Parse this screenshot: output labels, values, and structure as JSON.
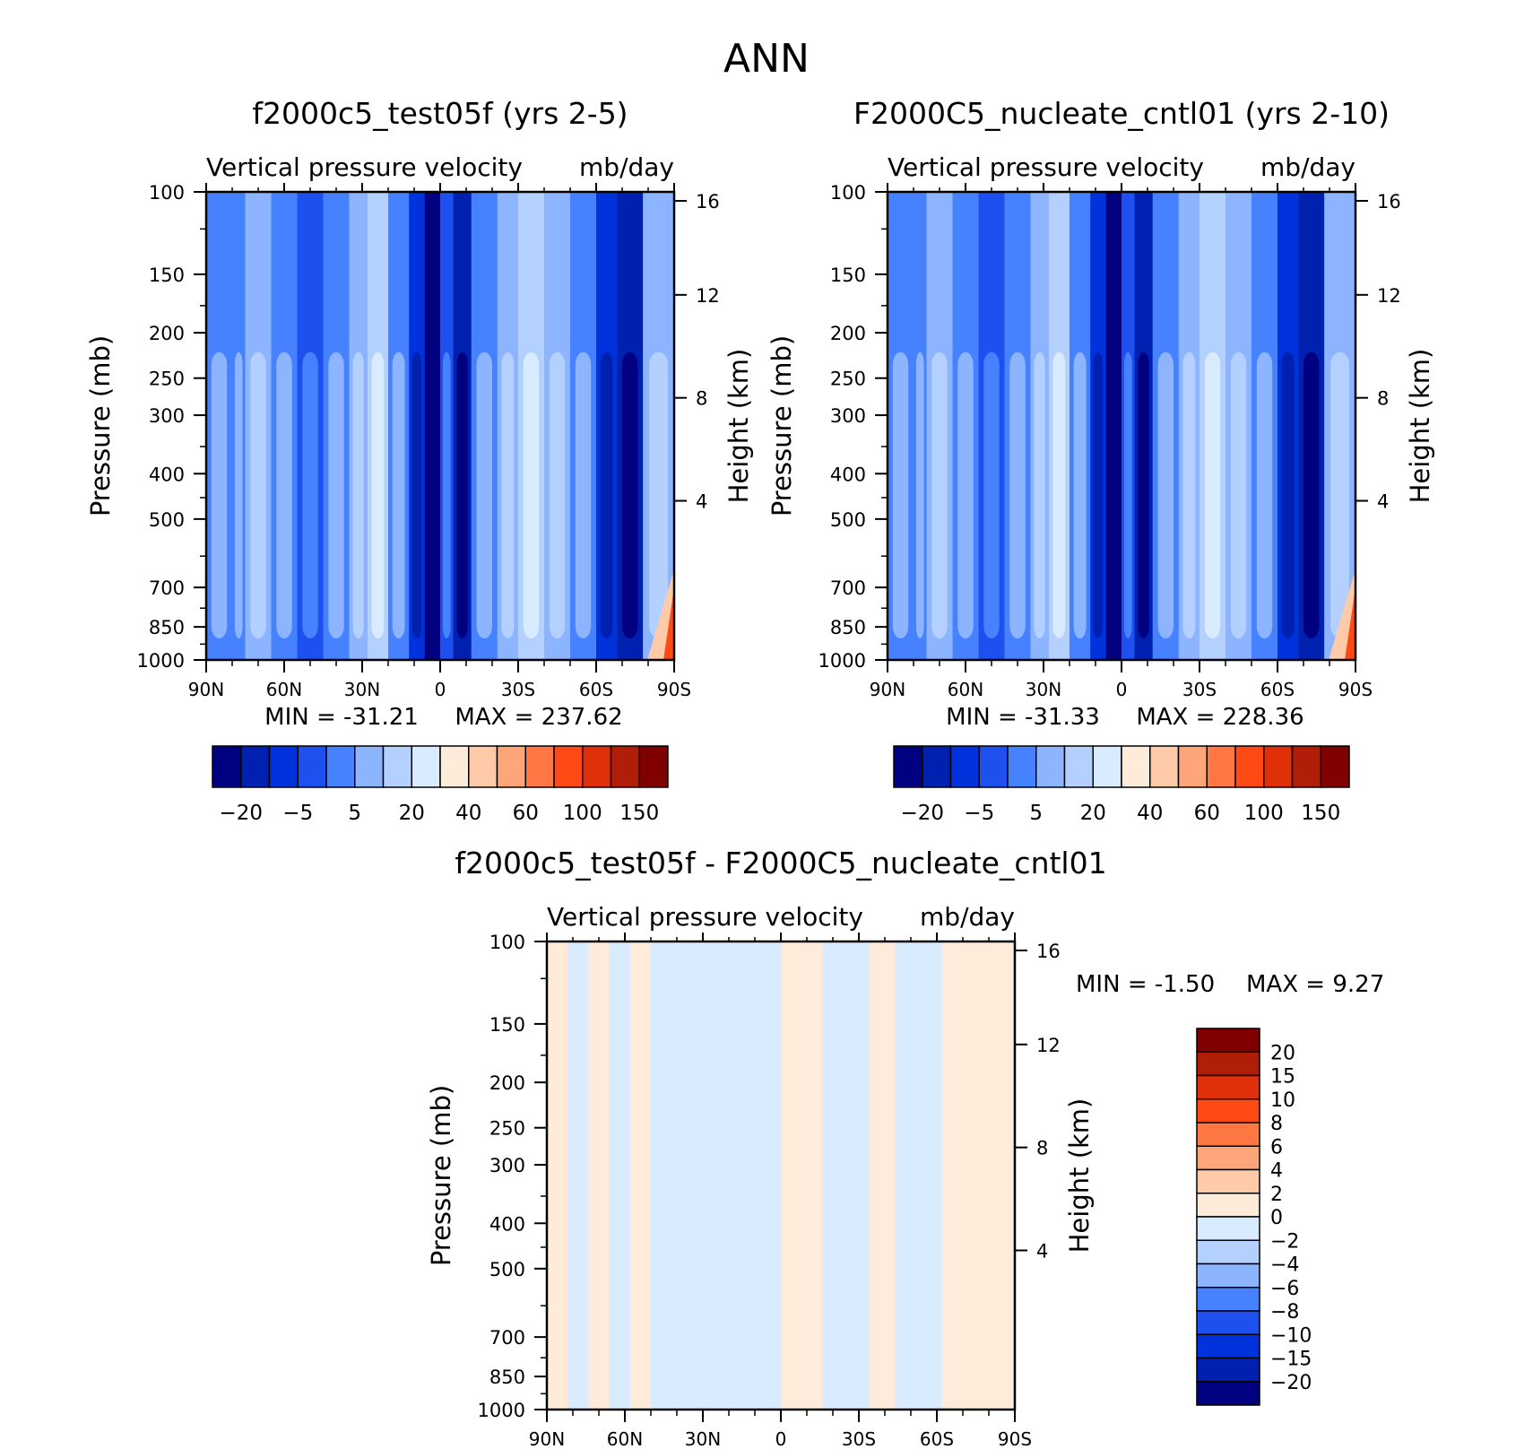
{
  "main_title": "ANN",
  "colors": {
    "fullfield": [
      "#000080",
      "#0020b0",
      "#0032dc",
      "#1e50f0",
      "#4682ff",
      "#8cb4ff",
      "#b4d0ff",
      "#d8ebff",
      "#ffebd9",
      "#ffcaa8",
      "#ffa57a",
      "#ff7844",
      "#ff4a16",
      "#e0300a",
      "#b01e08",
      "#800000"
    ],
    "difference": [
      "#000080",
      "#0020b0",
      "#0032dc",
      "#1e50f0",
      "#4682ff",
      "#8cb4ff",
      "#b4d0ff",
      "#d8ebff",
      "#ffebd9",
      "#ffcaa8",
      "#ffa57a",
      "#ff7844",
      "#ff4a16",
      "#e0300a",
      "#b01e08",
      "#800000"
    ]
  },
  "chart_data": [
    {
      "id": "panel-test",
      "type": "heatmap",
      "title": "f2000c5_test05f (yrs 2-5)",
      "subtitle_left": "Vertical pressure velocity",
      "subtitle_right": "mb/day",
      "xlabel": "",
      "ylabel": "Pressure (mb)",
      "y2label": "Height (km)",
      "x_ticks": [
        "90N",
        "60N",
        "30N",
        "0",
        "30S",
        "60S",
        "90S"
      ],
      "x_range": [
        90,
        -90
      ],
      "y_ticks": [
        100,
        150,
        200,
        250,
        300,
        400,
        500,
        700,
        850,
        1000
      ],
      "y_range": [
        100,
        1000
      ],
      "y2_ticks": [
        16,
        12,
        8,
        4
      ],
      "min_label": "MIN =  -31.21",
      "max_label": "MAX =  237.62",
      "min": -31.21,
      "max": 237.62,
      "colorbar_labels": [
        "-20",
        "-5",
        "5",
        "20",
        "40",
        "60",
        "100",
        "150"
      ],
      "columns": [
        {
          "lat": 90,
          "level": 4
        },
        {
          "lat": 80,
          "level": 4
        },
        {
          "lat": 75,
          "level": 5
        },
        {
          "lat": 65,
          "level": 4
        },
        {
          "lat": 55,
          "level": 3
        },
        {
          "lat": 45,
          "level": 4
        },
        {
          "lat": 35,
          "level": 5
        },
        {
          "lat": 28,
          "level": 6
        },
        {
          "lat": 20,
          "level": 4
        },
        {
          "lat": 12,
          "level": 2
        },
        {
          "lat": 6,
          "level": 0
        },
        {
          "lat": 0,
          "level": 3
        },
        {
          "lat": -5,
          "level": 1
        },
        {
          "lat": -12,
          "level": 4
        },
        {
          "lat": -22,
          "level": 5
        },
        {
          "lat": -30,
          "level": 6
        },
        {
          "lat": -40,
          "level": 5
        },
        {
          "lat": -50,
          "level": 4
        },
        {
          "lat": -60,
          "level": 2
        },
        {
          "lat": -68,
          "level": 1
        },
        {
          "lat": -78,
          "level": 5
        },
        {
          "lat": -90,
          "level": 4
        }
      ]
    },
    {
      "id": "panel-control",
      "type": "heatmap",
      "title": "F2000C5_nucleate_cntl01 (yrs 2-10)",
      "subtitle_left": "Vertical pressure velocity",
      "subtitle_right": "mb/day",
      "xlabel": "",
      "ylabel": "Pressure (mb)",
      "y2label": "Height (km)",
      "x_ticks": [
        "90N",
        "60N",
        "30N",
        "0",
        "30S",
        "60S",
        "90S"
      ],
      "x_range": [
        90,
        -90
      ],
      "y_ticks": [
        100,
        150,
        200,
        250,
        300,
        400,
        500,
        700,
        850,
        1000
      ],
      "y_range": [
        100,
        1000
      ],
      "y2_ticks": [
        16,
        12,
        8,
        4
      ],
      "min_label": "MIN =  -31.33",
      "max_label": "MAX =  228.36",
      "min": -31.33,
      "max": 228.36,
      "colorbar_labels": [
        "-20",
        "-5",
        "5",
        "20",
        "40",
        "60",
        "100",
        "150"
      ],
      "columns": [
        {
          "lat": 90,
          "level": 4
        },
        {
          "lat": 80,
          "level": 4
        },
        {
          "lat": 75,
          "level": 5
        },
        {
          "lat": 65,
          "level": 4
        },
        {
          "lat": 55,
          "level": 3
        },
        {
          "lat": 45,
          "level": 4
        },
        {
          "lat": 35,
          "level": 5
        },
        {
          "lat": 28,
          "level": 6
        },
        {
          "lat": 20,
          "level": 4
        },
        {
          "lat": 12,
          "level": 2
        },
        {
          "lat": 6,
          "level": 0
        },
        {
          "lat": 0,
          "level": 3
        },
        {
          "lat": -5,
          "level": 1
        },
        {
          "lat": -12,
          "level": 4
        },
        {
          "lat": -22,
          "level": 5
        },
        {
          "lat": -30,
          "level": 6
        },
        {
          "lat": -40,
          "level": 5
        },
        {
          "lat": -50,
          "level": 4
        },
        {
          "lat": -60,
          "level": 2
        },
        {
          "lat": -68,
          "level": 1
        },
        {
          "lat": -78,
          "level": 5
        },
        {
          "lat": -90,
          "level": 4
        }
      ]
    },
    {
      "id": "panel-diff",
      "type": "heatmap",
      "title": "f2000c5_test05f - F2000C5_nucleate_cntl01",
      "subtitle_left": "Vertical pressure velocity",
      "subtitle_right": "mb/day",
      "xlabel": "",
      "ylabel": "Pressure (mb)",
      "y2label": "Height (km)",
      "x_ticks": [
        "90N",
        "60N",
        "30N",
        "0",
        "30S",
        "60S",
        "90S"
      ],
      "x_range": [
        90,
        -90
      ],
      "y_ticks": [
        100,
        150,
        200,
        250,
        300,
        400,
        500,
        700,
        850,
        1000
      ],
      "y_range": [
        100,
        1000
      ],
      "y2_ticks": [
        16,
        12,
        8,
        4
      ],
      "min_label": "MIN =   -1.50",
      "max_label": "MAX =    9.27",
      "min": -1.5,
      "max": 9.27,
      "colorbar_labels": [
        "20",
        "15",
        "10",
        "8",
        "6",
        "4",
        "2",
        "0",
        "-2",
        "-4",
        "-6",
        "-8",
        "-10",
        "-15",
        "-20"
      ],
      "columns": [
        {
          "lat": 90,
          "level": 8
        },
        {
          "lat": 82,
          "level": 7
        },
        {
          "lat": 74,
          "level": 8
        },
        {
          "lat": 66,
          "level": 7
        },
        {
          "lat": 58,
          "level": 8
        },
        {
          "lat": 50,
          "level": 7
        },
        {
          "lat": 40,
          "level": 7
        },
        {
          "lat": 30,
          "level": 7
        },
        {
          "lat": 20,
          "level": 7
        },
        {
          "lat": 10,
          "level": 7
        },
        {
          "lat": 0,
          "level": 8
        },
        {
          "lat": -8,
          "level": 8
        },
        {
          "lat": -16,
          "level": 7
        },
        {
          "lat": -26,
          "level": 7
        },
        {
          "lat": -34,
          "level": 8
        },
        {
          "lat": -44,
          "level": 7
        },
        {
          "lat": -54,
          "level": 7
        },
        {
          "lat": -62,
          "level": 8
        },
        {
          "lat": -70,
          "level": 8
        },
        {
          "lat": -80,
          "level": 8
        },
        {
          "lat": -90,
          "level": 8
        }
      ]
    }
  ]
}
